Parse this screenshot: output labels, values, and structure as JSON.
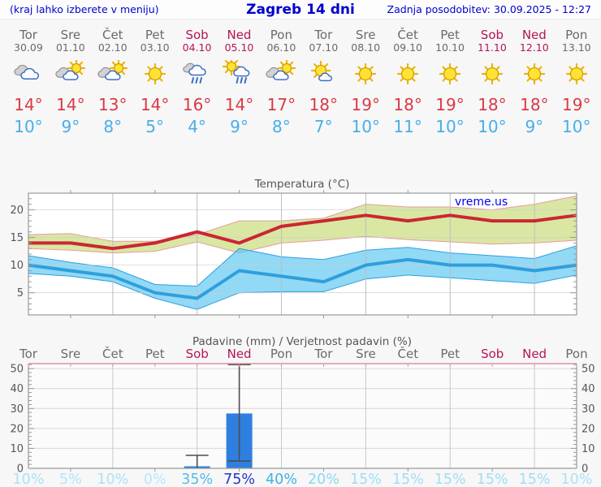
{
  "header": {
    "hint": "(kraj lahko izberete v meniju)",
    "title": "Zagreb 14 dni",
    "updated": "Zadnja posodobitev: 30.09.2025 - 12:27"
  },
  "colors": {
    "accent_blue": "#0000cc",
    "weekday": "#6a6a6a",
    "weekend": "#b41458",
    "max_temp": "#d93a45",
    "min_temp": "#46aeea"
  },
  "days": [
    {
      "name": "Tor",
      "date": "30.09",
      "weekend": false,
      "icon": "cloudy",
      "max": "14°",
      "min": "10°",
      "prob": "10%",
      "prob_color": "#a9e3f6"
    },
    {
      "name": "Sre",
      "date": "01.10",
      "weekend": false,
      "icon": "partly-cloudy",
      "max": "14°",
      "min": "9°",
      "prob": "5%",
      "prob_color": "#b2e6f8"
    },
    {
      "name": "Čet",
      "date": "02.10",
      "weekend": false,
      "icon": "partly-cloudy",
      "max": "13°",
      "min": "8°",
      "prob": "10%",
      "prob_color": "#a9e3f6"
    },
    {
      "name": "Pet",
      "date": "03.10",
      "weekend": false,
      "icon": "sunny",
      "max": "14°",
      "min": "5°",
      "prob": "0%",
      "prob_color": "#b7e8f9"
    },
    {
      "name": "Sob",
      "date": "04.10",
      "weekend": true,
      "icon": "rain",
      "max": "16°",
      "min": "4°",
      "prob": "35%",
      "prob_color": "#54bbe9"
    },
    {
      "name": "Ned",
      "date": "05.10",
      "weekend": true,
      "icon": "sun-rain",
      "max": "14°",
      "min": "9°",
      "prob": "75%",
      "prob_color": "#2433c9"
    },
    {
      "name": "Pon",
      "date": "06.10",
      "weekend": false,
      "icon": "partly-cloudy",
      "max": "17°",
      "min": "8°",
      "prob": "40%",
      "prob_color": "#44b1e6"
    },
    {
      "name": "Tor",
      "date": "07.10",
      "weekend": false,
      "icon": "mostly-sunny",
      "max": "18°",
      "min": "7°",
      "prob": "20%",
      "prob_color": "#8dd7f2"
    },
    {
      "name": "Sre",
      "date": "08.10",
      "weekend": false,
      "icon": "sunny",
      "max": "19°",
      "min": "10°",
      "prob": "15%",
      "prob_color": "#9fdff4"
    },
    {
      "name": "Čet",
      "date": "09.10",
      "weekend": false,
      "icon": "sunny",
      "max": "18°",
      "min": "11°",
      "prob": "15%",
      "prob_color": "#9fdff4"
    },
    {
      "name": "Pet",
      "date": "10.10",
      "weekend": false,
      "icon": "sunny",
      "max": "19°",
      "min": "10°",
      "prob": "15%",
      "prob_color": "#9fdff4"
    },
    {
      "name": "Sob",
      "date": "11.10",
      "weekend": true,
      "icon": "sunny",
      "max": "18°",
      "min": "10°",
      "prob": "15%",
      "prob_color": "#9fdff4"
    },
    {
      "name": "Ned",
      "date": "12.10",
      "weekend": true,
      "icon": "sunny",
      "max": "18°",
      "min": "9°",
      "prob": "15%",
      "prob_color": "#9fdff4"
    },
    {
      "name": "Pon",
      "date": "13.10",
      "weekend": false,
      "icon": "sunny",
      "max": "19°",
      "min": "10°",
      "prob": "10%",
      "prob_color": "#a9e3f6"
    }
  ],
  "chart_data": [
    {
      "type": "line",
      "title": "Temperatura (°C)",
      "watermark": "vreme.us",
      "categories": [
        "30.09",
        "01.10",
        "02.10",
        "03.10",
        "04.10",
        "05.10",
        "06.10",
        "07.10",
        "08.10",
        "09.10",
        "10.10",
        "11.10",
        "12.10",
        "13.10"
      ],
      "ylim": [
        1,
        23
      ],
      "yticks": [
        5,
        10,
        15,
        20
      ],
      "gridline_days": [
        2,
        4,
        6,
        8,
        10,
        12
      ],
      "series": [
        {
          "name": "max-temperature",
          "color": "#cb2633",
          "values": [
            14,
            14,
            13,
            14,
            16,
            14,
            17,
            18,
            19,
            18,
            19,
            18,
            18,
            19
          ],
          "band_upper": [
            15.5,
            15.7,
            14.3,
            14.3,
            15.5,
            18,
            18,
            18.5,
            21,
            20.5,
            20.5,
            20,
            21,
            22.5
          ],
          "band_lower": [
            13,
            12.7,
            12.2,
            12.5,
            14.2,
            12.2,
            14,
            14.5,
            15.2,
            14.6,
            14.2,
            13.8,
            14,
            14.5
          ],
          "band_color": "#d9e7a3",
          "band_edge": "#e89ba0"
        },
        {
          "name": "min-temperature",
          "color": "#2f9fdd",
          "values": [
            10,
            9,
            8,
            5,
            4,
            9,
            8,
            7,
            10,
            11,
            10,
            10,
            9,
            10
          ],
          "band_upper": [
            11.7,
            10.5,
            9.5,
            6.5,
            6.2,
            13,
            11.5,
            11,
            12.7,
            13.2,
            12.2,
            11.7,
            11.2,
            13.5
          ],
          "band_lower": [
            8.5,
            8,
            7,
            4,
            2,
            5,
            5.2,
            5.2,
            7.5,
            8.2,
            7.7,
            7.2,
            6.7,
            8.2
          ],
          "band_color": "rgba(86,197,240,0.65)",
          "band_edge": "#2d9fe0"
        }
      ]
    },
    {
      "type": "bar",
      "title": "Padavine (mm) / Verjetnost padavin (%)",
      "categories": [
        "Tor",
        "Sre",
        "Čet",
        "Pet",
        "Sob",
        "Ned",
        "Pon",
        "Tor",
        "Sre",
        "Čet",
        "Pet",
        "Sob",
        "Ned",
        "Pon"
      ],
      "ylim": [
        0,
        52.5
      ],
      "yticks": [
        0,
        10,
        20,
        30,
        40,
        50
      ],
      "bar_color": "#2f7fe0",
      "bars": [
        {
          "day_index": 4,
          "value": 1,
          "whisker_low": 0,
          "whisker_high": 6.5
        },
        {
          "day_index": 5,
          "value": 27.5,
          "whisker_low": 3.7,
          "whisker_high": 52
        }
      ],
      "probabilities": [
        10,
        5,
        10,
        0,
        35,
        75,
        40,
        20,
        15,
        15,
        15,
        15,
        15,
        10
      ]
    }
  ]
}
